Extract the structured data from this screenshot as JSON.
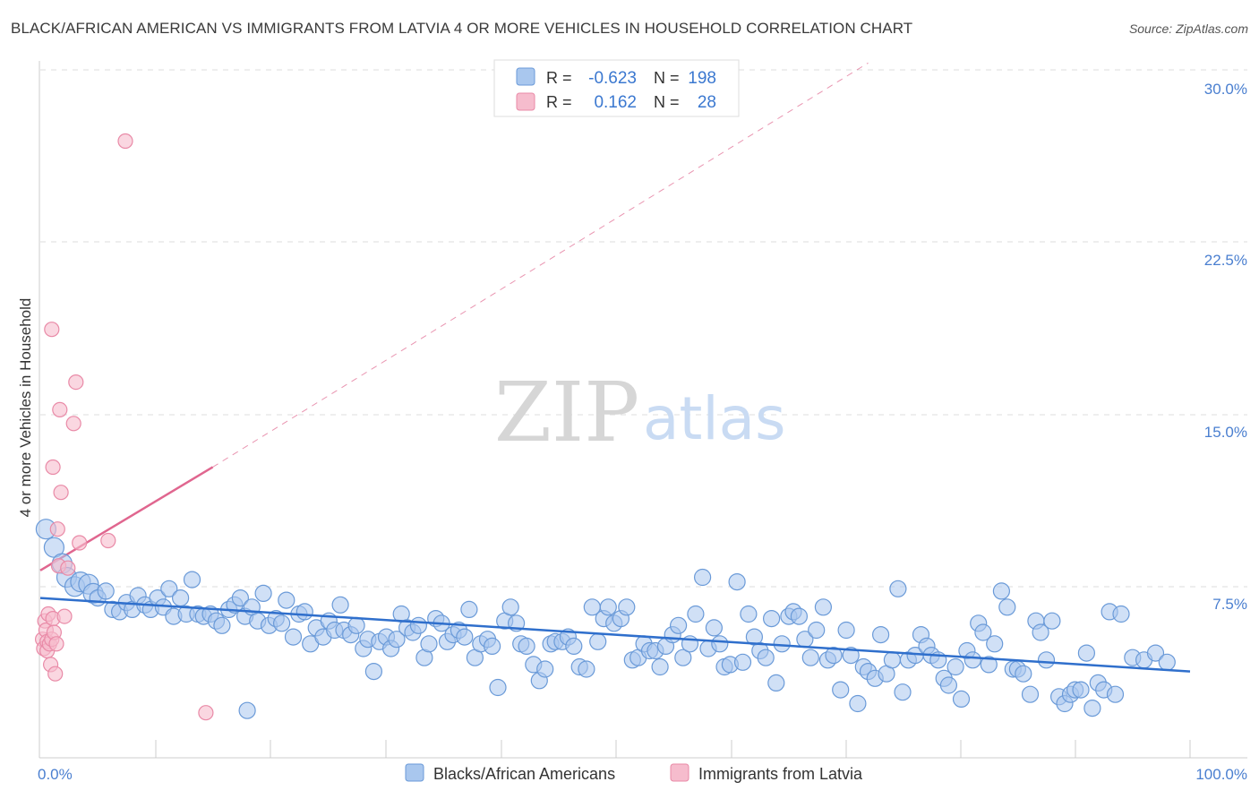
{
  "title": "BLACK/AFRICAN AMERICAN VS IMMIGRANTS FROM LATVIA 4 OR MORE VEHICLES IN HOUSEHOLD CORRELATION CHART",
  "source": "Source: ZipAtlas.com",
  "watermark": {
    "zip": "ZIP",
    "atlas": "atlas"
  },
  "colors": {
    "blue_fill": "#a9c7ee",
    "blue_stroke": "#6a9ad8",
    "blue_line": "#2f6fcc",
    "pink_fill": "#f6bccd",
    "pink_stroke": "#e98aa7",
    "pink_line": "#e0668f",
    "grid": "#dddddd",
    "axis_text": "#4a7fd0"
  },
  "legend": {
    "rows": [
      {
        "r_label": "R =",
        "r_value": "-0.623",
        "n_label": "N =",
        "n_value": "198"
      },
      {
        "r_label": "R =",
        "r_value": "0.162",
        "n_label": "N =",
        "n_value": "28"
      }
    ]
  },
  "chart_data": {
    "type": "scatter",
    "title": "BLACK/AFRICAN AMERICAN VS IMMIGRANTS FROM LATVIA 4 OR MORE VEHICLES IN HOUSEHOLD CORRELATION CHART",
    "xlabel": "",
    "ylabel": "4 or more Vehicles in Household",
    "xlim": [
      0,
      100
    ],
    "ylim": [
      0,
      31
    ],
    "x_tick_labels": [
      "0.0%",
      "100.0%"
    ],
    "y_ticks": [
      7.5,
      15.0,
      22.5,
      30.0
    ],
    "y_tick_labels": [
      "7.5%",
      "15.0%",
      "22.5%",
      "30.0%"
    ],
    "series": [
      {
        "name": "Blacks/African Americans",
        "color": "#a9c7ee",
        "r": -0.623,
        "n": 198,
        "trend": {
          "x": [
            0,
            100
          ],
          "y": [
            7.0,
            3.8
          ]
        },
        "points": [
          [
            0.5,
            10.0
          ],
          [
            1.2,
            9.2
          ],
          [
            1.9,
            8.5
          ],
          [
            2.3,
            7.9
          ],
          [
            3.0,
            7.5
          ],
          [
            3.5,
            7.7
          ],
          [
            4.2,
            7.6
          ],
          [
            4.6,
            7.2
          ],
          [
            5.0,
            7.0
          ],
          [
            5.7,
            7.3
          ],
          [
            6.3,
            6.5
          ],
          [
            6.9,
            6.4
          ],
          [
            7.5,
            6.8
          ],
          [
            8.0,
            6.5
          ],
          [
            8.5,
            7.1
          ],
          [
            9.1,
            6.7
          ],
          [
            9.6,
            6.5
          ],
          [
            10.2,
            7.0
          ],
          [
            10.7,
            6.6
          ],
          [
            11.2,
            7.4
          ],
          [
            11.6,
            6.2
          ],
          [
            12.2,
            7.0
          ],
          [
            12.7,
            6.3
          ],
          [
            13.2,
            7.8
          ],
          [
            13.7,
            6.3
          ],
          [
            14.2,
            6.2
          ],
          [
            14.8,
            6.3
          ],
          [
            15.3,
            6.0
          ],
          [
            15.8,
            5.8
          ],
          [
            16.4,
            6.5
          ],
          [
            16.9,
            6.7
          ],
          [
            17.4,
            7.0
          ],
          [
            17.8,
            6.2
          ],
          [
            18.4,
            6.6
          ],
          [
            18.9,
            6.0
          ],
          [
            19.4,
            7.2
          ],
          [
            19.9,
            5.8
          ],
          [
            20.5,
            6.1
          ],
          [
            21.0,
            5.9
          ],
          [
            21.4,
            6.9
          ],
          [
            22.0,
            5.3
          ],
          [
            22.5,
            6.3
          ],
          [
            23.0,
            6.4
          ],
          [
            23.5,
            5.0
          ],
          [
            24.0,
            5.7
          ],
          [
            24.6,
            5.3
          ],
          [
            25.1,
            6.0
          ],
          [
            25.6,
            5.6
          ],
          [
            26.1,
            6.7
          ],
          [
            26.4,
            5.6
          ],
          [
            27.0,
            5.4
          ],
          [
            27.5,
            5.8
          ],
          [
            28.1,
            4.8
          ],
          [
            28.5,
            5.2
          ],
          [
            29.0,
            3.8
          ],
          [
            29.5,
            5.1
          ],
          [
            30.1,
            5.3
          ],
          [
            30.5,
            4.8
          ],
          [
            31.0,
            5.2
          ],
          [
            31.4,
            6.3
          ],
          [
            31.9,
            5.7
          ],
          [
            32.4,
            5.5
          ],
          [
            32.9,
            5.8
          ],
          [
            33.4,
            4.4
          ],
          [
            33.8,
            5.0
          ],
          [
            34.4,
            6.1
          ],
          [
            34.9,
            5.9
          ],
          [
            35.4,
            5.1
          ],
          [
            35.9,
            5.4
          ],
          [
            36.4,
            5.6
          ],
          [
            36.9,
            5.3
          ],
          [
            37.3,
            6.5
          ],
          [
            37.8,
            4.4
          ],
          [
            38.3,
            5.0
          ],
          [
            38.9,
            5.2
          ],
          [
            39.3,
            4.9
          ],
          [
            39.8,
            3.1
          ],
          [
            40.4,
            6.0
          ],
          [
            40.9,
            6.6
          ],
          [
            41.4,
            5.9
          ],
          [
            41.8,
            5.0
          ],
          [
            42.3,
            4.9
          ],
          [
            42.9,
            4.1
          ],
          [
            43.4,
            3.4
          ],
          [
            43.9,
            3.9
          ],
          [
            44.4,
            5.0
          ],
          [
            44.8,
            5.1
          ],
          [
            45.4,
            5.1
          ],
          [
            45.9,
            5.3
          ],
          [
            46.4,
            4.9
          ],
          [
            46.9,
            4.0
          ],
          [
            47.5,
            3.9
          ],
          [
            48.0,
            6.6
          ],
          [
            48.5,
            5.1
          ],
          [
            49.0,
            6.1
          ],
          [
            49.4,
            6.6
          ],
          [
            49.9,
            5.9
          ],
          [
            50.5,
            6.1
          ],
          [
            51.0,
            6.6
          ],
          [
            51.5,
            4.3
          ],
          [
            52.0,
            4.4
          ],
          [
            52.5,
            5.0
          ],
          [
            53.0,
            4.7
          ],
          [
            53.5,
            4.7
          ],
          [
            53.9,
            4.0
          ],
          [
            54.4,
            4.9
          ],
          [
            55.0,
            5.4
          ],
          [
            55.5,
            5.8
          ],
          [
            55.9,
            4.4
          ],
          [
            56.5,
            5.0
          ],
          [
            57.0,
            6.3
          ],
          [
            57.6,
            7.9
          ],
          [
            58.1,
            4.8
          ],
          [
            58.6,
            5.7
          ],
          [
            59.1,
            5.0
          ],
          [
            59.5,
            4.0
          ],
          [
            60.0,
            4.1
          ],
          [
            60.6,
            7.7
          ],
          [
            61.1,
            4.2
          ],
          [
            61.6,
            6.3
          ],
          [
            62.1,
            5.3
          ],
          [
            62.6,
            4.7
          ],
          [
            63.1,
            4.4
          ],
          [
            63.6,
            6.1
          ],
          [
            64.0,
            3.3
          ],
          [
            64.5,
            5.0
          ],
          [
            65.1,
            6.2
          ],
          [
            65.5,
            6.4
          ],
          [
            66.0,
            6.2
          ],
          [
            66.5,
            5.2
          ],
          [
            67.0,
            4.4
          ],
          [
            67.5,
            5.6
          ],
          [
            68.1,
            6.6
          ],
          [
            68.5,
            4.3
          ],
          [
            69.0,
            4.5
          ],
          [
            69.6,
            3.0
          ],
          [
            70.1,
            5.6
          ],
          [
            70.5,
            4.5
          ],
          [
            71.1,
            2.4
          ],
          [
            71.6,
            4.0
          ],
          [
            72.0,
            3.8
          ],
          [
            72.6,
            3.5
          ],
          [
            73.1,
            5.4
          ],
          [
            73.6,
            3.7
          ],
          [
            74.1,
            4.3
          ],
          [
            74.6,
            7.4
          ],
          [
            75.0,
            2.9
          ],
          [
            75.5,
            4.3
          ],
          [
            76.1,
            4.5
          ],
          [
            76.6,
            5.4
          ],
          [
            77.1,
            4.9
          ],
          [
            77.5,
            4.5
          ],
          [
            78.1,
            4.3
          ],
          [
            78.6,
            3.5
          ],
          [
            79.0,
            3.2
          ],
          [
            79.6,
            4.0
          ],
          [
            80.1,
            2.6
          ],
          [
            80.6,
            4.7
          ],
          [
            81.1,
            4.3
          ],
          [
            81.6,
            5.9
          ],
          [
            82.0,
            5.5
          ],
          [
            82.5,
            4.1
          ],
          [
            83.0,
            5.0
          ],
          [
            83.6,
            7.3
          ],
          [
            84.1,
            6.6
          ],
          [
            84.6,
            3.9
          ],
          [
            85.0,
            3.9
          ],
          [
            85.5,
            3.7
          ],
          [
            86.1,
            2.8
          ],
          [
            86.6,
            6.0
          ],
          [
            87.0,
            5.5
          ],
          [
            87.5,
            4.3
          ],
          [
            88.0,
            6.0
          ],
          [
            88.6,
            2.7
          ],
          [
            89.1,
            2.4
          ],
          [
            89.6,
            2.8
          ],
          [
            90.0,
            3.0
          ],
          [
            90.5,
            3.0
          ],
          [
            91.0,
            4.6
          ],
          [
            91.5,
            2.2
          ],
          [
            92.0,
            3.3
          ],
          [
            92.5,
            3.0
          ],
          [
            93.0,
            6.4
          ],
          [
            93.5,
            2.8
          ],
          [
            94.0,
            6.3
          ],
          [
            95.0,
            4.4
          ],
          [
            96.0,
            4.3
          ],
          [
            97.0,
            4.6
          ],
          [
            98.0,
            4.2
          ],
          [
            18.0,
            2.1
          ]
        ]
      },
      {
        "name": "Immigrants from Latvia",
        "color": "#f6bccd",
        "r": 0.162,
        "n": 28,
        "trend": {
          "x": [
            0,
            15
          ],
          "y": [
            8.2,
            12.7
          ]
        },
        "trend_extension": {
          "x": [
            15,
            72
          ],
          "y": [
            12.7,
            30.3
          ]
        },
        "points": [
          [
            0.2,
            5.2
          ],
          [
            0.3,
            4.8
          ],
          [
            0.4,
            6.0
          ],
          [
            0.5,
            5.6
          ],
          [
            0.6,
            5.1
          ],
          [
            0.6,
            4.7
          ],
          [
            0.7,
            6.3
          ],
          [
            0.8,
            5.0
          ],
          [
            0.9,
            4.1
          ],
          [
            1.0,
            5.2
          ],
          [
            1.1,
            6.1
          ],
          [
            1.2,
            5.5
          ],
          [
            1.3,
            3.7
          ],
          [
            1.4,
            5.0
          ],
          [
            1.5,
            10.0
          ],
          [
            1.6,
            8.4
          ],
          [
            1.7,
            15.2
          ],
          [
            1.8,
            11.6
          ],
          [
            2.1,
            6.2
          ],
          [
            2.4,
            8.3
          ],
          [
            2.9,
            14.6
          ],
          [
            3.4,
            9.4
          ],
          [
            1.0,
            18.7
          ],
          [
            1.1,
            12.7
          ],
          [
            3.1,
            16.4
          ],
          [
            5.9,
            9.5
          ],
          [
            7.4,
            26.9
          ],
          [
            14.4,
            2.0
          ]
        ]
      }
    ]
  },
  "bottom_legend": [
    {
      "label": "Blacks/African Americans"
    },
    {
      "label": "Immigrants from Latvia"
    }
  ]
}
